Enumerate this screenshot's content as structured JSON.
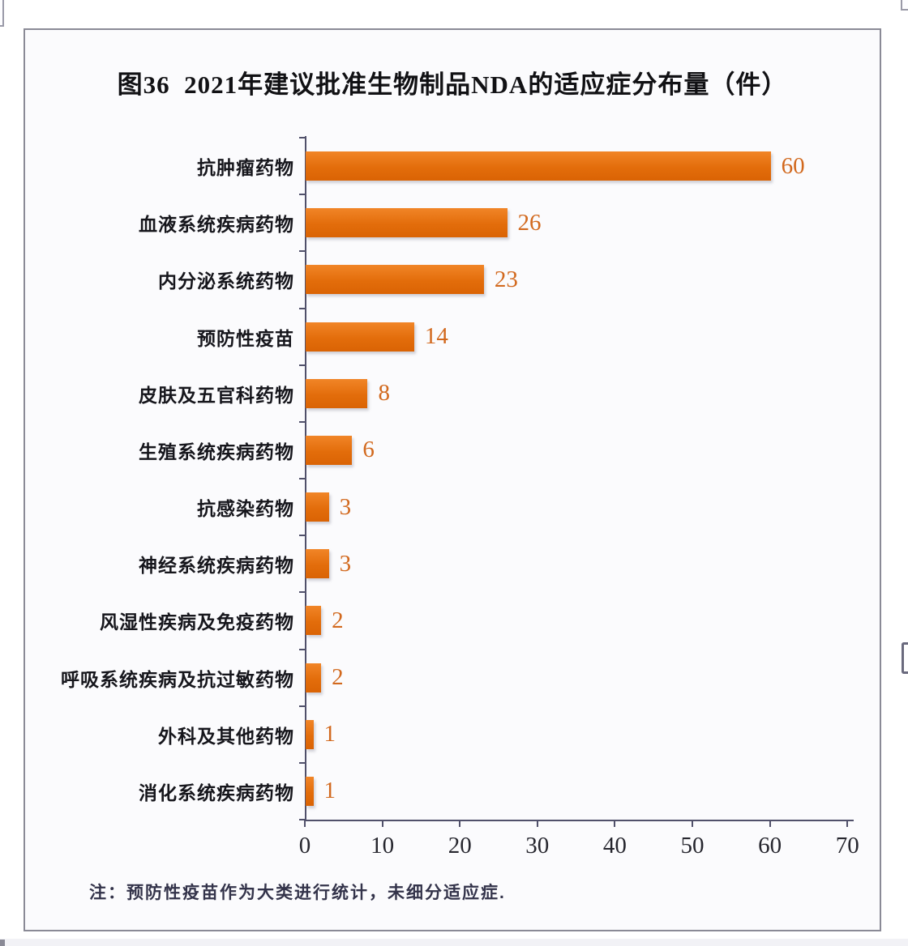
{
  "chart_data": {
    "type": "bar",
    "orientation": "horizontal",
    "title": "图36  2021年建议批准生物制品NDA的适应症分布量（件）",
    "categories": [
      "抗肿瘤药物",
      "血液系统疾病药物",
      "内分泌系统药物",
      "预防性疫苗",
      "皮肤及五官科药物",
      "生殖系统疾病药物",
      "抗感染药物",
      "神经系统疾病药物",
      "风湿性疾病及免疫药物",
      "呼吸系统疾病及抗过敏药物",
      "外科及其他药物",
      "消化系统疾病药物"
    ],
    "values": [
      60,
      26,
      23,
      14,
      8,
      6,
      3,
      3,
      2,
      2,
      1,
      1
    ],
    "xlabel": "",
    "ylabel": "",
    "xlim": [
      0,
      70
    ],
    "x_ticks": [
      0,
      10,
      20,
      30,
      40,
      50,
      60,
      70
    ],
    "grid": false,
    "legend": false,
    "data_labels": true,
    "bar_color": "#e36d0b",
    "value_label_color": "#d2691e"
  },
  "note": "注：预防性疫苗作为大类进行统计，未细分适应症."
}
